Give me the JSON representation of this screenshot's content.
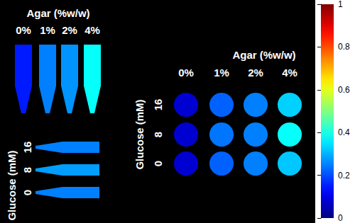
{
  "chart_data": {
    "type": "heatmap",
    "colorbar": {
      "range": [
        0,
        1
      ],
      "ticks": [
        0,
        0.2,
        0.4,
        0.6,
        0.8,
        1
      ]
    },
    "panels": [
      {
        "marker": "tube",
        "title": "Agar (%w/w)",
        "categories": [
          "0%",
          "1%",
          "2%",
          "4%"
        ],
        "values": [
          0.15,
          0.25,
          0.27,
          0.38
        ]
      },
      {
        "marker": "tube",
        "title": "Glucose (mM)",
        "categories": [
          "0",
          "8",
          "16"
        ],
        "values": [
          0.25,
          0.28,
          0.25
        ]
      },
      {
        "marker": "well",
        "x_title": "Agar (%w/w)",
        "x_categories": [
          "0%",
          "1%",
          "2%",
          "4%"
        ],
        "y_title": "Glucose (mM)",
        "y_categories": [
          "0",
          "8",
          "16"
        ],
        "cells": [
          [
            0.08,
            0.22,
            0.25,
            0.32
          ],
          [
            0.08,
            0.24,
            0.25,
            0.38
          ],
          [
            0.08,
            0.22,
            0.25,
            0.33
          ]
        ]
      }
    ]
  }
}
